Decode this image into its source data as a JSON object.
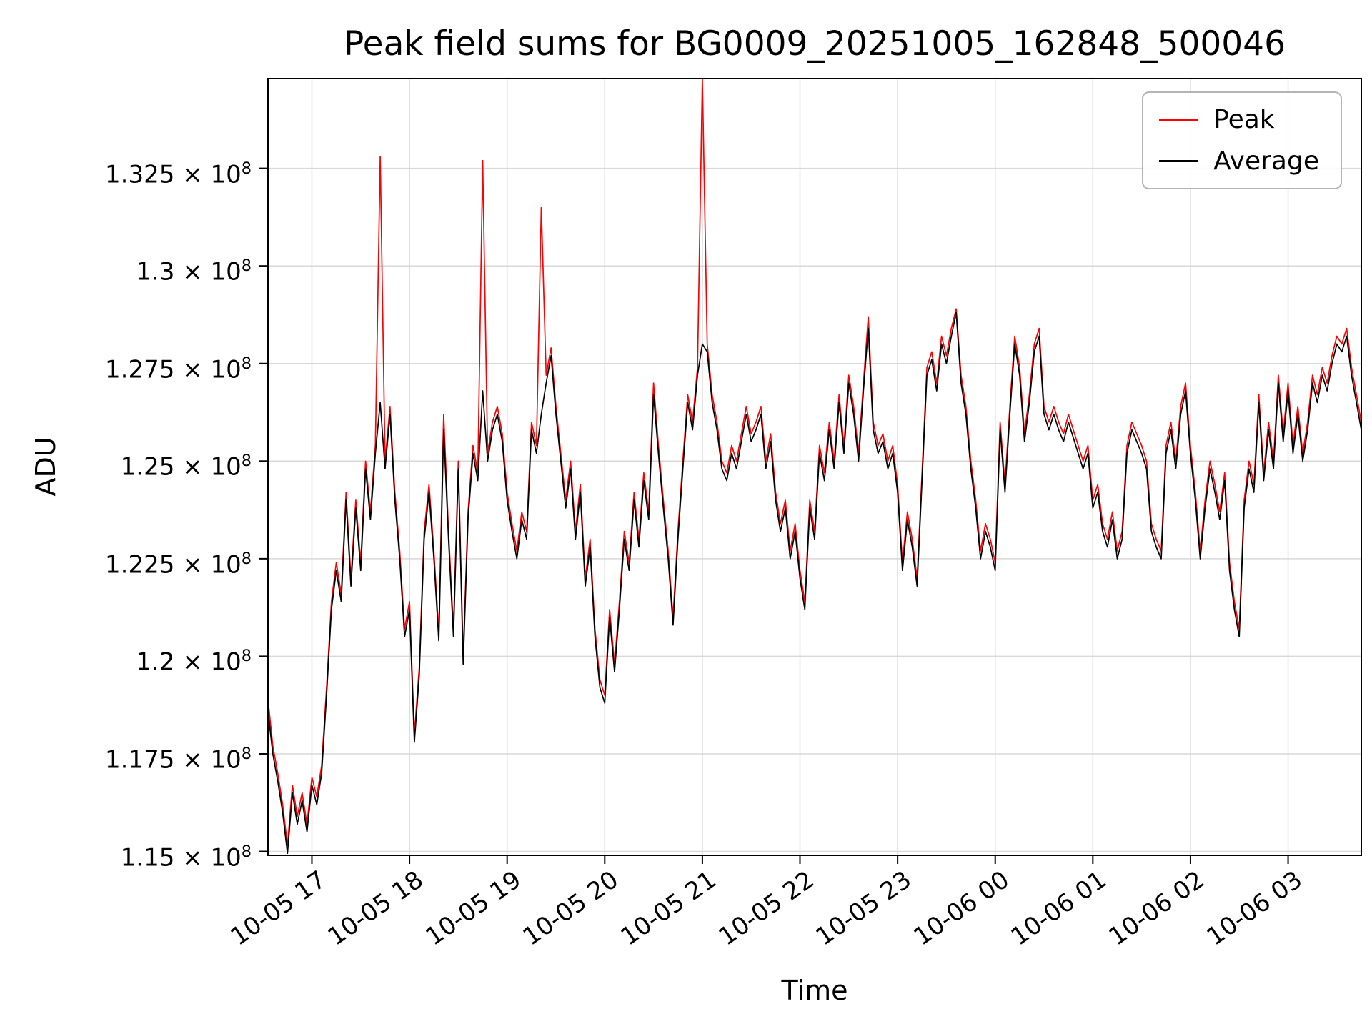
{
  "title": "Peak field sums for BG0009_20251005_162848_500046",
  "axes": {
    "x_label": "Time",
    "y_label": "ADU",
    "x_tick_labels": [
      "10-05 17",
      "10-05 18",
      "10-05 19",
      "10-05 20",
      "10-05 21",
      "10-05 22",
      "10-05 23",
      "10-06 00",
      "10-06 01",
      "10-06 02",
      "10-06 03"
    ],
    "x_tick_values": [
      17,
      18,
      19,
      20,
      21,
      22,
      23,
      24,
      25,
      26,
      27
    ],
    "y_tick_mantissas": [
      "1.15",
      "1.175",
      "1.2",
      "1.225",
      "1.25",
      "1.275",
      "1.3",
      "1.325"
    ],
    "y_tick_values": [
      1.15,
      1.175,
      1.2,
      1.225,
      1.25,
      1.275,
      1.3,
      1.325
    ],
    "y_exponent": "8"
  },
  "legend": {
    "entries": [
      {
        "label": "Peak",
        "color": "#ff0000"
      },
      {
        "label": "Average",
        "color": "#000000"
      }
    ]
  },
  "colors": {
    "grid": "#d8d8d8",
    "spine": "#000000",
    "background": "#ffffff"
  },
  "chart_data": {
    "type": "line",
    "title": "Peak field sums for BG0009_20251005_162848_500046",
    "xlabel": "Time",
    "ylabel": "ADU",
    "grid": true,
    "legend_position": "upper right",
    "x_axis_note": "hours since 2025-10-05 00:00, ticks labeled as month-day hour",
    "x_start": 16.55,
    "x_step": 0.05,
    "xlim": [
      16.55,
      27.75
    ],
    "y_unit": "1e8 ADU",
    "ylim_e8": [
      1.149,
      1.348
    ],
    "series": [
      {
        "name": "Peak",
        "color": "#ff0000",
        "values_e8": [
          1.189,
          1.177,
          1.17,
          1.162,
          1.1515,
          1.167,
          1.159,
          1.165,
          1.157,
          1.169,
          1.164,
          1.172,
          1.192,
          1.214,
          1.224,
          1.216,
          1.242,
          1.22,
          1.24,
          1.224,
          1.25,
          1.237,
          1.254,
          1.328,
          1.25,
          1.264,
          1.242,
          1.227,
          1.207,
          1.214,
          1.18,
          1.197,
          1.232,
          1.244,
          1.227,
          1.206,
          1.262,
          1.232,
          1.207,
          1.25,
          1.2,
          1.237,
          1.254,
          1.247,
          1.327,
          1.252,
          1.26,
          1.264,
          1.257,
          1.242,
          1.234,
          1.227,
          1.237,
          1.232,
          1.26,
          1.254,
          1.315,
          1.272,
          1.279,
          1.264,
          1.252,
          1.24,
          1.25,
          1.232,
          1.244,
          1.22,
          1.23,
          1.207,
          1.194,
          1.19,
          1.212,
          1.198,
          1.214,
          1.232,
          1.224,
          1.242,
          1.23,
          1.247,
          1.237,
          1.27,
          1.254,
          1.24,
          1.227,
          1.21,
          1.232,
          1.25,
          1.267,
          1.26,
          1.274,
          1.348,
          1.28,
          1.267,
          1.26,
          1.25,
          1.247,
          1.254,
          1.25,
          1.257,
          1.264,
          1.257,
          1.26,
          1.264,
          1.25,
          1.257,
          1.242,
          1.234,
          1.24,
          1.227,
          1.234,
          1.222,
          1.214,
          1.24,
          1.232,
          1.254,
          1.247,
          1.26,
          1.25,
          1.267,
          1.254,
          1.272,
          1.264,
          1.252,
          1.27,
          1.287,
          1.26,
          1.254,
          1.257,
          1.25,
          1.254,
          1.244,
          1.224,
          1.237,
          1.23,
          1.22,
          1.247,
          1.274,
          1.278,
          1.27,
          1.282,
          1.277,
          1.284,
          1.289,
          1.272,
          1.264,
          1.25,
          1.24,
          1.227,
          1.234,
          1.23,
          1.224,
          1.26,
          1.244,
          1.264,
          1.282,
          1.274,
          1.257,
          1.267,
          1.28,
          1.284,
          1.264,
          1.26,
          1.264,
          1.26,
          1.257,
          1.262,
          1.258,
          1.254,
          1.25,
          1.254,
          1.24,
          1.244,
          1.234,
          1.23,
          1.237,
          1.227,
          1.232,
          1.254,
          1.26,
          1.257,
          1.254,
          1.25,
          1.234,
          1.23,
          1.227,
          1.254,
          1.26,
          1.25,
          1.264,
          1.27,
          1.254,
          1.242,
          1.227,
          1.24,
          1.25,
          1.244,
          1.237,
          1.247,
          1.224,
          1.214,
          1.207,
          1.24,
          1.25,
          1.244,
          1.267,
          1.247,
          1.26,
          1.25,
          1.272,
          1.257,
          1.27,
          1.254,
          1.264,
          1.252,
          1.26,
          1.272,
          1.267,
          1.274,
          1.27,
          1.277,
          1.282,
          1.28,
          1.284,
          1.274,
          1.267,
          1.26
        ]
      },
      {
        "name": "Average",
        "color": "#000000",
        "values_e8": [
          1.186,
          1.175,
          1.168,
          1.16,
          1.1495,
          1.165,
          1.157,
          1.163,
          1.155,
          1.167,
          1.162,
          1.17,
          1.19,
          1.212,
          1.222,
          1.214,
          1.24,
          1.218,
          1.238,
          1.222,
          1.248,
          1.235,
          1.252,
          1.265,
          1.248,
          1.262,
          1.24,
          1.225,
          1.205,
          1.212,
          1.178,
          1.195,
          1.23,
          1.242,
          1.225,
          1.204,
          1.258,
          1.23,
          1.205,
          1.248,
          1.198,
          1.235,
          1.252,
          1.245,
          1.268,
          1.25,
          1.258,
          1.262,
          1.255,
          1.24,
          1.232,
          1.225,
          1.235,
          1.23,
          1.258,
          1.252,
          1.262,
          1.27,
          1.277,
          1.262,
          1.25,
          1.238,
          1.248,
          1.23,
          1.242,
          1.218,
          1.228,
          1.205,
          1.192,
          1.188,
          1.21,
          1.196,
          1.212,
          1.23,
          1.222,
          1.24,
          1.228,
          1.245,
          1.235,
          1.267,
          1.252,
          1.238,
          1.225,
          1.208,
          1.23,
          1.248,
          1.265,
          1.258,
          1.272,
          1.28,
          1.278,
          1.265,
          1.258,
          1.248,
          1.245,
          1.252,
          1.248,
          1.255,
          1.262,
          1.255,
          1.258,
          1.262,
          1.248,
          1.255,
          1.24,
          1.232,
          1.238,
          1.225,
          1.232,
          1.22,
          1.212,
          1.238,
          1.23,
          1.252,
          1.245,
          1.258,
          1.248,
          1.265,
          1.252,
          1.27,
          1.262,
          1.25,
          1.268,
          1.284,
          1.258,
          1.252,
          1.255,
          1.248,
          1.252,
          1.242,
          1.222,
          1.235,
          1.228,
          1.218,
          1.245,
          1.272,
          1.276,
          1.268,
          1.28,
          1.275,
          1.282,
          1.288,
          1.27,
          1.262,
          1.248,
          1.238,
          1.225,
          1.232,
          1.228,
          1.222,
          1.258,
          1.242,
          1.262,
          1.28,
          1.272,
          1.255,
          1.265,
          1.278,
          1.282,
          1.262,
          1.258,
          1.262,
          1.258,
          1.255,
          1.26,
          1.256,
          1.252,
          1.248,
          1.252,
          1.238,
          1.242,
          1.232,
          1.228,
          1.235,
          1.225,
          1.23,
          1.252,
          1.258,
          1.255,
          1.252,
          1.248,
          1.232,
          1.228,
          1.225,
          1.252,
          1.258,
          1.248,
          1.262,
          1.268,
          1.252,
          1.24,
          1.225,
          1.238,
          1.248,
          1.242,
          1.235,
          1.245,
          1.222,
          1.212,
          1.205,
          1.238,
          1.248,
          1.242,
          1.265,
          1.245,
          1.258,
          1.248,
          1.27,
          1.255,
          1.268,
          1.252,
          1.262,
          1.25,
          1.258,
          1.27,
          1.265,
          1.272,
          1.268,
          1.275,
          1.28,
          1.278,
          1.282,
          1.272,
          1.265,
          1.258
        ]
      }
    ]
  }
}
